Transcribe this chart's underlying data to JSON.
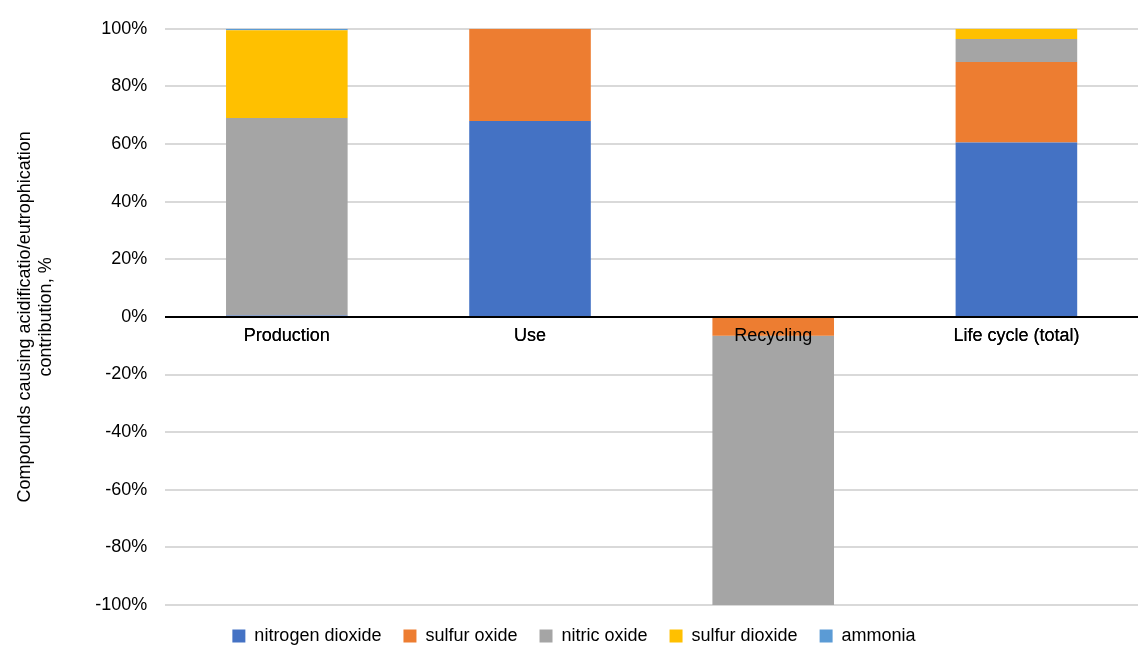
{
  "chart_data": {
    "type": "bar",
    "stacked": true,
    "ylabel": "Compounds causing acidificatio/eutrophication\ncontribution, %",
    "categories": [
      "Production",
      "Use",
      "Recycling",
      "Life cycle (total)"
    ],
    "series": [
      {
        "name": "nitrogen dioxide",
        "color": "#4472c4",
        "values": [
          0.5,
          68,
          0,
          60.5
        ]
      },
      {
        "name": "sulfur oxide",
        "color": "#ed7d31",
        "values": [
          0,
          32,
          -6.5,
          28
        ]
      },
      {
        "name": "nitric oxide",
        "color": "#a5a5a5",
        "values": [
          68.5,
          0,
          -93.5,
          8
        ]
      },
      {
        "name": "sulfur dioxide",
        "color": "#ffc000",
        "values": [
          30.5,
          0,
          0,
          3.5
        ]
      },
      {
        "name": "ammonia",
        "color": "#5b9bd5",
        "values": [
          0.5,
          0,
          0,
          0
        ]
      }
    ],
    "ylim": [
      -100,
      100
    ],
    "yticks": [
      {
        "value": -100,
        "label": "-100%"
      },
      {
        "value": -80,
        "label": "-80%"
      },
      {
        "value": -60,
        "label": "-60%"
      },
      {
        "value": -40,
        "label": "-40%"
      },
      {
        "value": -20,
        "label": "-20%"
      },
      {
        "value": 0,
        "label": "0%"
      },
      {
        "value": 20,
        "label": "20%"
      },
      {
        "value": 40,
        "label": "40%"
      },
      {
        "value": 60,
        "label": "60%"
      },
      {
        "value": 80,
        "label": "80%"
      },
      {
        "value": 100,
        "label": "100%"
      }
    ],
    "grid": "y",
    "legend": "bottom"
  }
}
